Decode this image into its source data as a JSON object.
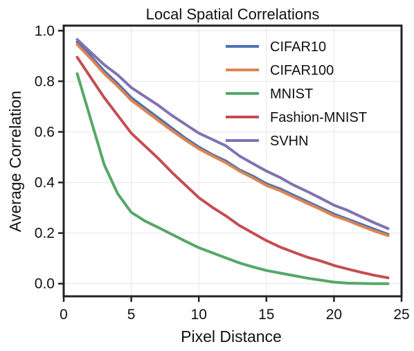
{
  "chart_data": {
    "type": "line",
    "title": "Local Spatial Correlations",
    "xlabel": "Pixel Distance",
    "ylabel": "Average Correlation",
    "xlim": [
      0,
      25
    ],
    "ylim": [
      -0.05,
      1.02
    ],
    "xticks": [
      0,
      5,
      10,
      15,
      20,
      25
    ],
    "yticks": [
      0.0,
      0.2,
      0.4,
      0.6,
      0.8,
      1.0
    ],
    "xtick_labels": [
      "0",
      "5",
      "10",
      "15",
      "20",
      "25"
    ],
    "ytick_labels": [
      "0.0",
      "0.2",
      "0.4",
      "0.6",
      "0.8",
      "1.0"
    ],
    "grid": true,
    "legend_position": "top-right",
    "x": [
      1,
      2,
      3,
      4,
      5,
      6,
      7,
      8,
      9,
      10,
      11,
      12,
      13,
      14,
      15,
      16,
      17,
      18,
      19,
      20,
      21,
      22,
      23,
      24
    ],
    "series": [
      {
        "name": "CIFAR10",
        "color": "#4c72b0",
        "values": [
          0.955,
          0.9,
          0.84,
          0.79,
          0.735,
          0.695,
          0.655,
          0.615,
          0.575,
          0.54,
          0.51,
          0.485,
          0.45,
          0.425,
          0.395,
          0.375,
          0.35,
          0.325,
          0.3,
          0.275,
          0.255,
          0.235,
          0.215,
          0.195
        ]
      },
      {
        "name": "CIFAR100",
        "color": "#dd8452",
        "values": [
          0.945,
          0.89,
          0.83,
          0.78,
          0.725,
          0.685,
          0.645,
          0.605,
          0.568,
          0.533,
          0.505,
          0.478,
          0.445,
          0.418,
          0.388,
          0.368,
          0.343,
          0.318,
          0.294,
          0.268,
          0.25,
          0.228,
          0.208,
          0.19
        ]
      },
      {
        "name": "MNIST",
        "color": "#55a868",
        "values": [
          0.83,
          0.65,
          0.47,
          0.355,
          0.282,
          0.248,
          0.222,
          0.195,
          0.168,
          0.142,
          0.122,
          0.102,
          0.082,
          0.066,
          0.052,
          0.042,
          0.032,
          0.022,
          0.014,
          0.006,
          0.002,
          0.001,
          0.0,
          0.0
        ]
      },
      {
        "name": "Fashion-MNIST",
        "color": "#c44e52",
        "values": [
          0.895,
          0.815,
          0.735,
          0.665,
          0.595,
          0.545,
          0.495,
          0.44,
          0.39,
          0.34,
          0.302,
          0.268,
          0.23,
          0.2,
          0.17,
          0.145,
          0.125,
          0.105,
          0.09,
          0.072,
          0.058,
          0.045,
          0.033,
          0.023
        ]
      },
      {
        "name": "SVHN",
        "color": "#8172b2",
        "values": [
          0.965,
          0.915,
          0.865,
          0.825,
          0.775,
          0.74,
          0.705,
          0.665,
          0.63,
          0.595,
          0.57,
          0.545,
          0.505,
          0.475,
          0.445,
          0.42,
          0.39,
          0.365,
          0.338,
          0.31,
          0.29,
          0.265,
          0.24,
          0.218
        ]
      }
    ]
  }
}
